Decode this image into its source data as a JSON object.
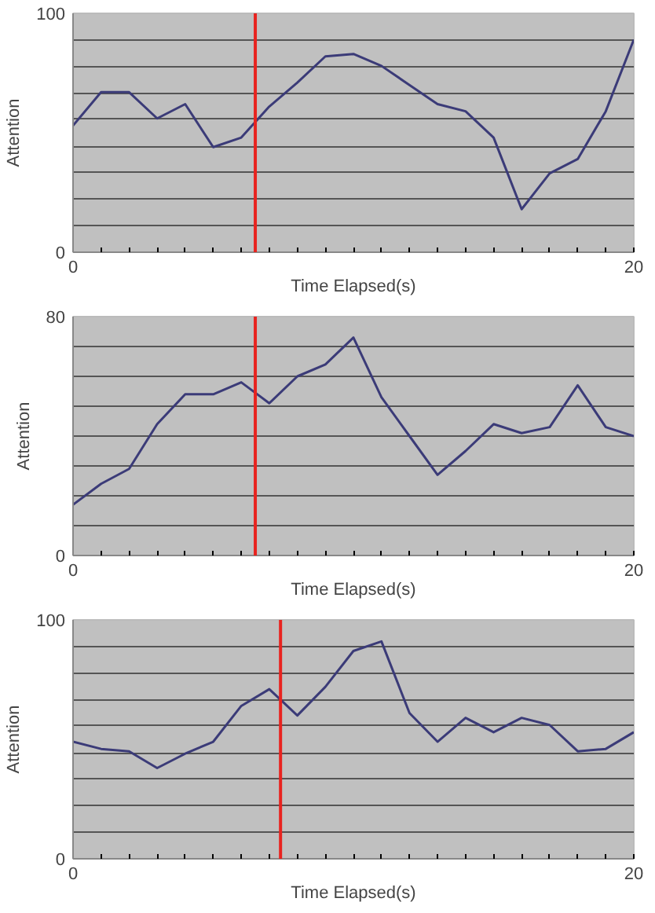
{
  "chart_data": [
    {
      "type": "line",
      "xlabel": "Time Elapsed(s)",
      "ylabel": "Attention",
      "x": [
        0,
        1,
        2,
        3,
        4,
        5,
        6,
        7,
        8,
        9,
        10,
        11,
        12,
        13,
        14,
        15,
        16,
        17,
        18,
        19,
        20
      ],
      "series": [
        {
          "color": "#3b3b78",
          "values": [
            53,
            67,
            67,
            56,
            62,
            44,
            48,
            61,
            71,
            82,
            83,
            78,
            70,
            62,
            59,
            48,
            18,
            33,
            39,
            59,
            89
          ]
        }
      ],
      "xlim": [
        0,
        20
      ],
      "ylim": [
        0,
        100
      ],
      "xticks": [
        0,
        {
          "value": 1,
          "label": null
        },
        {
          "value": 2,
          "label": null
        },
        {
          "value": 3,
          "label": null
        },
        {
          "value": 4,
          "label": null
        },
        {
          "value": 5,
          "label": null
        },
        {
          "value": 6,
          "label": null
        },
        {
          "value": 7,
          "label": null
        },
        {
          "value": 8,
          "label": null
        },
        {
          "value": 9,
          "label": null
        },
        {
          "value": 10,
          "label": null
        },
        {
          "value": 11,
          "label": null
        },
        {
          "value": 12,
          "label": null
        },
        {
          "value": 13,
          "label": null
        },
        {
          "value": 14,
          "label": null
        },
        {
          "value": 15,
          "label": null
        },
        {
          "value": 16,
          "label": null
        },
        {
          "value": 17,
          "label": null
        },
        {
          "value": 18,
          "label": null
        },
        {
          "value": 19,
          "label": null
        },
        20
      ],
      "yticks": [
        0,
        {
          "value": 11.1,
          "label": null
        },
        {
          "value": 22.2,
          "label": null
        },
        {
          "value": 33.3,
          "label": null
        },
        {
          "value": 44.4,
          "label": null
        },
        {
          "value": 55.6,
          "label": null
        },
        {
          "value": 66.7,
          "label": null
        },
        {
          "value": 77.8,
          "label": null
        },
        {
          "value": 88.9,
          "label": null
        },
        100
      ],
      "grid": "y",
      "ref_lines": [
        {
          "axis": "x",
          "value": 6.5,
          "color": "#e8231f"
        }
      ]
    },
    {
      "type": "line",
      "xlabel": "Time Elapsed(s)",
      "ylabel": "Attention",
      "x": [
        0,
        1,
        2,
        3,
        4,
        5,
        6,
        7,
        8,
        9,
        10,
        11,
        12,
        13,
        14,
        15,
        16,
        17,
        18,
        19,
        20
      ],
      "series": [
        {
          "color": "#3b3b78",
          "values": [
            17,
            24,
            29,
            44,
            54,
            54,
            58,
            51,
            60,
            64,
            73,
            53,
            40,
            27,
            35,
            44,
            41,
            43,
            57,
            43,
            40
          ]
        }
      ],
      "xlim": [
        0,
        20
      ],
      "ylim": [
        0,
        80
      ],
      "xticks": [
        0,
        {
          "value": 1,
          "label": null
        },
        {
          "value": 2,
          "label": null
        },
        {
          "value": 3,
          "label": null
        },
        {
          "value": 4,
          "label": null
        },
        {
          "value": 5,
          "label": null
        },
        {
          "value": 6,
          "label": null
        },
        {
          "value": 7,
          "label": null
        },
        {
          "value": 8,
          "label": null
        },
        {
          "value": 9,
          "label": null
        },
        {
          "value": 10,
          "label": null
        },
        {
          "value": 11,
          "label": null
        },
        {
          "value": 12,
          "label": null
        },
        {
          "value": 13,
          "label": null
        },
        {
          "value": 14,
          "label": null
        },
        {
          "value": 15,
          "label": null
        },
        {
          "value": 16,
          "label": null
        },
        {
          "value": 17,
          "label": null
        },
        {
          "value": 18,
          "label": null
        },
        {
          "value": 19,
          "label": null
        },
        20
      ],
      "yticks": [
        0,
        {
          "value": 10,
          "label": null
        },
        {
          "value": 20,
          "label": null
        },
        {
          "value": 30,
          "label": null
        },
        {
          "value": 40,
          "label": null
        },
        {
          "value": 50,
          "label": null
        },
        {
          "value": 60,
          "label": null
        },
        {
          "value": 70,
          "label": null
        },
        80
      ],
      "grid": "y",
      "ref_lines": [
        {
          "axis": "x",
          "value": 6.5,
          "color": "#e8231f"
        }
      ]
    },
    {
      "type": "line",
      "xlabel": "Time Elapsed(s)",
      "ylabel": "Attention",
      "x": [
        0,
        1,
        2,
        3,
        4,
        5,
        6,
        7,
        8,
        9,
        10,
        11,
        12,
        13,
        14,
        15,
        16,
        17,
        18,
        19,
        20
      ],
      "series": [
        {
          "color": "#3b3b78",
          "values": [
            49,
            46,
            45,
            38,
            44,
            49,
            64,
            71,
            60,
            72,
            87,
            91,
            61,
            49,
            59,
            53,
            59,
            56,
            45,
            46,
            53
          ]
        }
      ],
      "xlim": [
        0,
        20
      ],
      "ylim": [
        0,
        100
      ],
      "xticks": [
        0,
        {
          "value": 1,
          "label": null
        },
        {
          "value": 2,
          "label": null
        },
        {
          "value": 3,
          "label": null
        },
        {
          "value": 4,
          "label": null
        },
        {
          "value": 5,
          "label": null
        },
        {
          "value": 6,
          "label": null
        },
        {
          "value": 7,
          "label": null
        },
        {
          "value": 8,
          "label": null
        },
        {
          "value": 9,
          "label": null
        },
        {
          "value": 10,
          "label": null
        },
        {
          "value": 11,
          "label": null
        },
        {
          "value": 12,
          "label": null
        },
        {
          "value": 13,
          "label": null
        },
        {
          "value": 14,
          "label": null
        },
        {
          "value": 15,
          "label": null
        },
        {
          "value": 16,
          "label": null
        },
        {
          "value": 17,
          "label": null
        },
        {
          "value": 18,
          "label": null
        },
        {
          "value": 19,
          "label": null
        },
        20
      ],
      "yticks": [
        0,
        {
          "value": 11.1,
          "label": null
        },
        {
          "value": 22.2,
          "label": null
        },
        {
          "value": 33.3,
          "label": null
        },
        {
          "value": 44.4,
          "label": null
        },
        {
          "value": 55.6,
          "label": null
        },
        {
          "value": 66.7,
          "label": null
        },
        {
          "value": 77.8,
          "label": null
        },
        {
          "value": 88.9,
          "label": null
        },
        100
      ],
      "grid": "y",
      "ref_lines": [
        {
          "axis": "x",
          "value": 7.4,
          "color": "#e8231f"
        }
      ]
    }
  ]
}
